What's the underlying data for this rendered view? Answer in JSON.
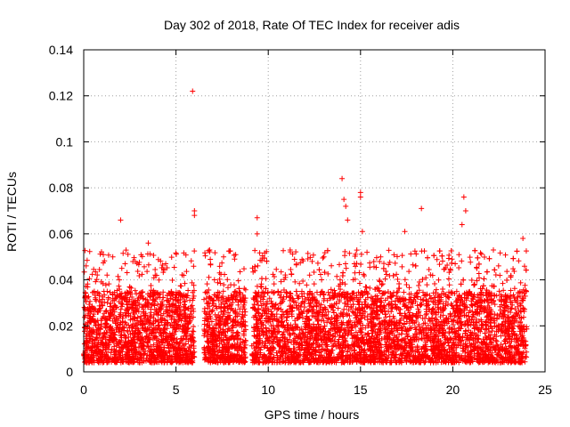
{
  "chart_data": {
    "type": "scatter",
    "title": "Day 302 of 2018, Rate Of TEC Index for receiver adis",
    "xlabel": "GPS time / hours",
    "ylabel": "ROTI / TECUs",
    "xlim": [
      0,
      25
    ],
    "ylim": [
      0,
      0.14
    ],
    "xticks": [
      0,
      5,
      10,
      15,
      20,
      25
    ],
    "yticks": [
      0,
      0.02,
      0.04,
      0.06,
      0.08,
      0.1,
      0.12,
      0.14
    ],
    "xtick_labels": [
      "0",
      "5",
      "10",
      "15",
      "20",
      "25"
    ],
    "ytick_labels": [
      "0",
      "0.02",
      "0.04",
      "0.06",
      "0.08",
      "0.1",
      "0.12",
      "0.14"
    ],
    "grid": true,
    "marker": "+",
    "series_color": "#ff0000",
    "data_coverage_hours": [
      [
        0.0,
        6.0
      ],
      [
        6.5,
        8.8
      ],
      [
        9.1,
        24.0
      ]
    ],
    "typical_range": [
      0.004,
      0.035
    ],
    "outliers": [
      {
        "x": 5.9,
        "y": 0.122
      },
      {
        "x": 2.0,
        "y": 0.066
      },
      {
        "x": 6.0,
        "y": 0.07
      },
      {
        "x": 6.0,
        "y": 0.068
      },
      {
        "x": 3.5,
        "y": 0.056
      },
      {
        "x": 9.4,
        "y": 0.067
      },
      {
        "x": 9.4,
        "y": 0.06
      },
      {
        "x": 14.0,
        "y": 0.084
      },
      {
        "x": 14.1,
        "y": 0.075
      },
      {
        "x": 14.2,
        "y": 0.072
      },
      {
        "x": 15.0,
        "y": 0.078
      },
      {
        "x": 15.0,
        "y": 0.076
      },
      {
        "x": 14.3,
        "y": 0.066
      },
      {
        "x": 18.3,
        "y": 0.071
      },
      {
        "x": 20.6,
        "y": 0.076
      },
      {
        "x": 20.7,
        "y": 0.07
      },
      {
        "x": 20.5,
        "y": 0.064
      },
      {
        "x": 15.1,
        "y": 0.061
      },
      {
        "x": 17.4,
        "y": 0.061
      },
      {
        "x": 23.8,
        "y": 0.058
      },
      {
        "x": 22.2,
        "y": 0.053
      }
    ]
  }
}
